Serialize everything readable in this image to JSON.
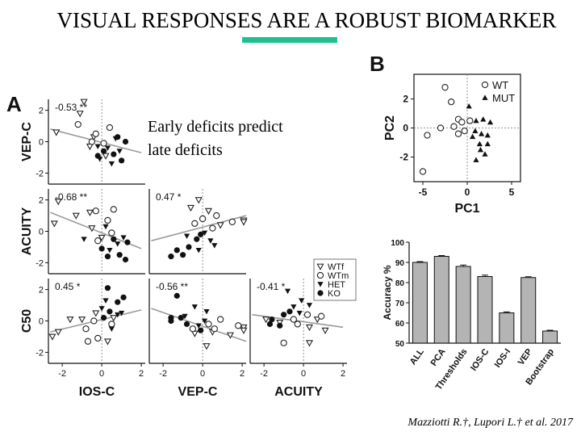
{
  "slide": {
    "title": "VISUAL RESPONSES ARE A ROBUST BIOMARKER",
    "overlay_line1": "Early deficits predict",
    "overlay_line2": "late deficits",
    "citation": "Mazziotti R.†, Lupori L.† et al. 2017"
  },
  "panels": {
    "a_label": "A",
    "b_label": "B"
  },
  "chart_data": [
    {
      "type": "scatter",
      "panel": "A",
      "row_labels": [
        "VEP-C",
        "ACUITY",
        "C50"
      ],
      "col_labels": [
        "IOS-C",
        "VEP-C",
        "ACUITY"
      ],
      "xticks": [
        "-2",
        "0",
        "2"
      ],
      "yticks": [
        "2",
        "0",
        "-2"
      ],
      "xlim": [
        -2.7,
        2.2
      ],
      "ylim": [
        -2.7,
        2.7
      ],
      "legend": [
        "WTf",
        "WTm",
        "HET",
        "KO"
      ],
      "cells": [
        {
          "row": 0,
          "col": 0,
          "r_label": "-0.53 **",
          "fit": [
            [
              -2.6,
              0.8
            ],
            [
              2.0,
              -0.7
            ]
          ],
          "points": {
            "WTf": [
              [
                -2.3,
                0.6
              ],
              [
                -1.1,
                1.8
              ],
              [
                -0.9,
                2.6
              ],
              [
                -0.4,
                0.3
              ],
              [
                0.2,
                -0.9
              ],
              [
                -0.6,
                -0.3
              ]
            ],
            "WTm": [
              [
                -1.2,
                1.1
              ],
              [
                -0.3,
                0.5
              ],
              [
                0.4,
                0.9
              ],
              [
                0.1,
                -0.1
              ],
              [
                -0.5,
                0.0
              ]
            ],
            "HET": [
              [
                -0.2,
                -0.3
              ],
              [
                0.3,
                -0.4
              ],
              [
                0.7,
                0.2
              ],
              [
                0.5,
                -1.4
              ],
              [
                -0.1,
                -1.1
              ],
              [
                0.9,
                -0.6
              ]
            ],
            "KO": [
              [
                0.6,
                -0.8
              ],
              [
                1.2,
                0.0
              ],
              [
                0.1,
                -0.6
              ],
              [
                1.0,
                -1.2
              ],
              [
                -0.2,
                -0.9
              ],
              [
                0.8,
                0.3
              ]
            ]
          }
        },
        {
          "row": 1,
          "col": 0,
          "r_label": "-0.68 **",
          "fit": [
            [
              -2.6,
              1.2
            ],
            [
              2.0,
              -1.1
            ]
          ],
          "points": {
            "WTf": [
              [
                -2.2,
                1.9
              ],
              [
                -2.4,
                0.5
              ],
              [
                -1.3,
                1.0
              ],
              [
                -0.6,
                1.2
              ],
              [
                -0.5,
                0.2
              ],
              [
                0.0,
                -0.4
              ]
            ],
            "WTm": [
              [
                -0.3,
                1.3
              ],
              [
                0.3,
                0.7
              ],
              [
                0.6,
                1.4
              ],
              [
                -0.2,
                -0.6
              ],
              [
                0.5,
                -0.1
              ]
            ],
            "HET": [
              [
                -0.9,
                -0.5
              ],
              [
                0.2,
                0.3
              ],
              [
                0.8,
                -0.8
              ],
              [
                0.4,
                -1.2
              ],
              [
                1.1,
                -0.4
              ]
            ],
            "KO": [
              [
                0.3,
                -1.6
              ],
              [
                0.9,
                -1.5
              ],
              [
                1.3,
                -0.7
              ],
              [
                0.0,
                -1.1
              ],
              [
                0.6,
                -0.5
              ],
              [
                1.2,
                -1.8
              ]
            ]
          }
        },
        {
          "row": 1,
          "col": 1,
          "r_label": "0.47 *",
          "fit": [
            [
              -2.6,
              -0.6
            ],
            [
              3.5,
              1.0
            ]
          ],
          "points": {
            "WTf": [
              [
                -0.2,
                2.0
              ],
              [
                0.3,
                1.3
              ],
              [
                2.3,
                0.7
              ],
              [
                3.2,
                0.6
              ],
              [
                0.9,
                0.4
              ],
              [
                -0.6,
                1.5
              ]
            ],
            "WTm": [
              [
                0.7,
                1.0
              ],
              [
                0.0,
                0.8
              ],
              [
                1.5,
                0.6
              ],
              [
                0.5,
                0.2
              ],
              [
                -0.4,
                0.5
              ]
            ],
            "HET": [
              [
                -0.8,
                -0.3
              ],
              [
                0.1,
                -0.1
              ],
              [
                0.4,
                -0.6
              ],
              [
                -0.2,
                -1.2
              ],
              [
                0.6,
                -0.9
              ]
            ],
            "KO": [
              [
                -1.6,
                -1.6
              ],
              [
                -1.0,
                -1.5
              ],
              [
                -0.7,
                -1.0
              ],
              [
                -0.3,
                -0.5
              ],
              [
                -1.3,
                -1.2
              ],
              [
                -0.1,
                -0.2
              ]
            ]
          }
        },
        {
          "row": 2,
          "col": 0,
          "r_label": "0.45 *",
          "fit": [
            [
              -2.6,
              -0.7
            ],
            [
              2.0,
              0.7
            ]
          ],
          "points": {
            "WTf": [
              [
                -2.5,
                -1.0
              ],
              [
                -1.6,
                0.1
              ],
              [
                -2.2,
                -0.7
              ],
              [
                -1.0,
                0.1
              ],
              [
                0.6,
                0.2
              ],
              [
                -0.3,
                0.5
              ],
              [
                0.3,
                -1.3
              ]
            ],
            "WTm": [
              [
                -0.7,
                -1.3
              ],
              [
                -0.8,
                -0.5
              ],
              [
                -0.2,
                -1.1
              ],
              [
                0.5,
                -0.2
              ],
              [
                -0.4,
                0.0
              ]
            ],
            "HET": [
              [
                0.2,
                1.3
              ],
              [
                0.8,
                0.4
              ],
              [
                0.0,
                0.8
              ],
              [
                0.5,
                -0.5
              ],
              [
                1.0,
                0.5
              ]
            ],
            "KO": [
              [
                0.3,
                2.1
              ],
              [
                0.8,
                1.2
              ],
              [
                0.4,
                0.6
              ],
              [
                0.1,
                0.2
              ],
              [
                1.1,
                1.5
              ]
            ]
          }
        },
        {
          "row": 2,
          "col": 1,
          "r_label": "-0.56 **",
          "fit": [
            [
              -2.6,
              0.8
            ],
            [
              3.5,
              -1.3
            ]
          ],
          "points": {
            "WTf": [
              [
                0.2,
                -1.6
              ],
              [
                0.5,
                -0.7
              ],
              [
                2.3,
                -0.4
              ],
              [
                3.0,
                -0.6
              ],
              [
                1.4,
                -0.9
              ],
              [
                -0.4,
                -0.8
              ]
            ],
            "WTm": [
              [
                0.3,
                -0.2
              ],
              [
                0.9,
                0.1
              ],
              [
                1.8,
                -0.3
              ],
              [
                0.6,
                -0.5
              ],
              [
                -0.5,
                -0.5
              ]
            ],
            "HET": [
              [
                -0.9,
                0.3
              ],
              [
                -0.4,
                0.9
              ],
              [
                0.2,
                0.6
              ],
              [
                0.1,
                0.0
              ],
              [
                -0.2,
                -0.3
              ]
            ],
            "KO": [
              [
                -1.3,
                1.6
              ],
              [
                -1.6,
                0.0
              ],
              [
                -0.8,
                -0.2
              ],
              [
                -0.1,
                -0.6
              ],
              [
                -1.1,
                0.2
              ],
              [
                -1.6,
                0.2
              ]
            ]
          }
        },
        {
          "row": 2,
          "col": 2,
          "r_label": "-0.41 *",
          "fit": [
            [
              -2.6,
              0.4
            ],
            [
              2.0,
              -0.4
            ]
          ],
          "points": {
            "WTf": [
              [
                -1.9,
                0.1
              ],
              [
                0.3,
                -1.4
              ],
              [
                0.7,
                0.1
              ],
              [
                1.1,
                -0.6
              ],
              [
                -1.2,
                -0.1
              ],
              [
                0.3,
                -0.4
              ]
            ],
            "WTm": [
              [
                -1.0,
                -1.4
              ],
              [
                -0.3,
                -0.2
              ],
              [
                0.2,
                0.4
              ],
              [
                0.9,
                0.3
              ],
              [
                -0.5,
                0.1
              ]
            ],
            "HET": [
              [
                -0.8,
                1.9
              ],
              [
                -0.1,
                1.3
              ],
              [
                -0.2,
                0.5
              ],
              [
                0.3,
                1.0
              ],
              [
                -0.5,
                0.9
              ]
            ],
            "KO": [
              [
                -1.6,
                0.1
              ],
              [
                -1.0,
                0.4
              ],
              [
                -1.7,
                -0.2
              ],
              [
                -0.7,
                0.6
              ],
              [
                -1.2,
                -0.3
              ]
            ]
          }
        }
      ]
    },
    {
      "type": "scatter",
      "panel": "B",
      "xlabel": "PC1",
      "ylabel": "PC2",
      "xticks": [
        "-5",
        "0",
        "5"
      ],
      "yticks": [
        "2",
        "0",
        "-2"
      ],
      "xlim": [
        -6,
        6
      ],
      "ylim": [
        -3.7,
        3.7
      ],
      "legend": [
        "WT",
        "MUT"
      ],
      "series": [
        {
          "name": "WT",
          "points": [
            [
              -5.0,
              -3.0
            ],
            [
              -4.5,
              -0.5
            ],
            [
              -3.0,
              0.0
            ],
            [
              -2.5,
              2.8
            ],
            [
              -1.5,
              0.1
            ],
            [
              -1.0,
              0.6
            ],
            [
              -1.0,
              -0.4
            ],
            [
              -0.6,
              0.4
            ],
            [
              -1.8,
              1.8
            ],
            [
              0.3,
              0.5
            ],
            [
              -0.3,
              -0.2
            ]
          ]
        },
        {
          "name": "MUT",
          "points": [
            [
              0.2,
              1.5
            ],
            [
              1.0,
              0.5
            ],
            [
              1.8,
              0.6
            ],
            [
              2.6,
              0.4
            ],
            [
              2.3,
              -0.5
            ],
            [
              1.4,
              -1.1
            ],
            [
              2.0,
              -1.8
            ],
            [
              1.0,
              -2.2
            ],
            [
              1.5,
              -1.5
            ],
            [
              0.6,
              -0.6
            ],
            [
              2.3,
              -1.1
            ],
            [
              1.6,
              -0.4
            ],
            [
              0.9,
              -0.2
            ]
          ]
        }
      ]
    },
    {
      "type": "bar",
      "ylabel": "Accuracy %",
      "ylim": [
        50,
        100
      ],
      "yticks": [
        "100",
        "90",
        "80",
        "70",
        "60",
        "50"
      ],
      "categories": [
        "ALL",
        "PCA",
        "Thresholds",
        "IOS-C",
        "IOS-I",
        "VEP",
        "Bootstrap"
      ],
      "values": [
        90,
        93,
        88,
        83,
        65,
        82.5,
        56
      ],
      "errors": [
        0.4,
        0.4,
        0.7,
        0.7,
        0.5,
        0.4,
        0.4
      ]
    }
  ],
  "colors": {
    "accent": "#1fbf8f",
    "bar_fill": "#b4b4b4",
    "fit_line": "#9a9a9a"
  }
}
